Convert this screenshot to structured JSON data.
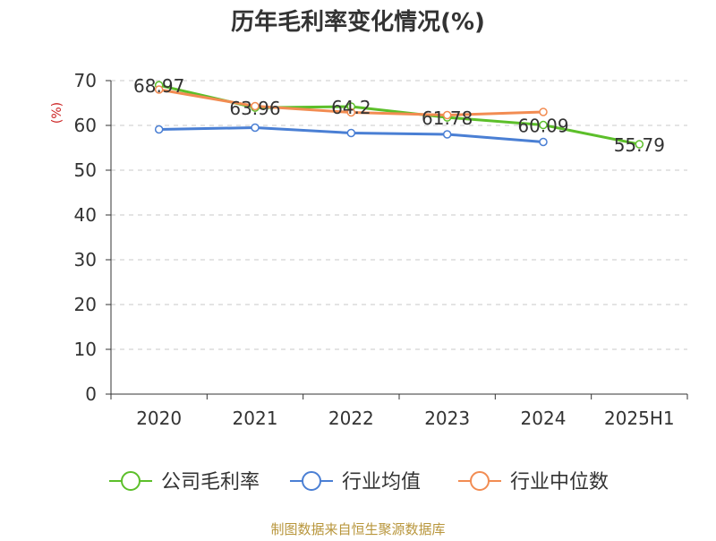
{
  "chart_data": {
    "type": "line",
    "title": "历年毛利率变化情况(%)",
    "ylabel": "(%)",
    "xlabel": "",
    "categories": [
      "2020",
      "2021",
      "2022",
      "2023",
      "2024",
      "2025H1"
    ],
    "ylim": [
      0,
      70
    ],
    "yticks": [
      0,
      10,
      20,
      30,
      40,
      50,
      60,
      70
    ],
    "grid": true,
    "legend_position": "bottom",
    "series": [
      {
        "name": "公司毛利率",
        "color": "#5cbf2a",
        "values": [
          68.97,
          63.96,
          64.2,
          61.78,
          60.09,
          55.79
        ],
        "labels": [
          "68.97",
          "63.96",
          "64.2",
          "61.78",
          "60.09",
          "55.79"
        ]
      },
      {
        "name": "行业均值",
        "color": "#4a7fd4",
        "values": [
          59.1,
          59.5,
          58.3,
          58.0,
          56.3,
          null
        ],
        "labels": []
      },
      {
        "name": "行业中位数",
        "color": "#f28c52",
        "values": [
          68.0,
          64.3,
          62.9,
          62.3,
          63.0,
          null
        ],
        "labels": []
      }
    ]
  },
  "source": "制图数据来自恒生聚源数据库"
}
